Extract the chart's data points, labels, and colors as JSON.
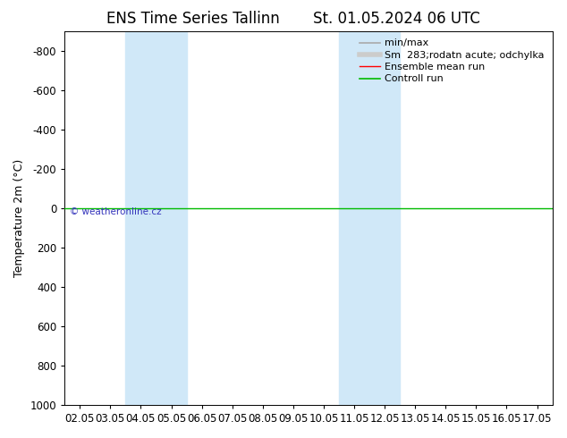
{
  "title": "ENS Time Series Tallinn",
  "title2": "St. 01.05.2024 06 UTC",
  "ylabel": "Temperature 2m (°C)",
  "xlim_dates": [
    "02.05",
    "03.05",
    "04.05",
    "05.05",
    "06.05",
    "07.05",
    "08.05",
    "09.05",
    "10.05",
    "11.05",
    "12.05",
    "13.05",
    "14.05",
    "15.05",
    "16.05",
    "17.05"
  ],
  "ylim_top": -900,
  "ylim_bottom": 1000,
  "yticks": [
    -800,
    -600,
    -400,
    -200,
    0,
    200,
    400,
    600,
    800,
    1000
  ],
  "x_ticks_positions": [
    0,
    1,
    2,
    3,
    4,
    5,
    6,
    7,
    8,
    9,
    10,
    11,
    12,
    13,
    14,
    15
  ],
  "shaded_regions": [
    {
      "xmin": 2,
      "xmax": 4,
      "color": "#d0e8f8"
    },
    {
      "xmin": 9,
      "xmax": 11,
      "color": "#d0e8f8"
    }
  ],
  "green_line_y": 0,
  "red_line_y": 0,
  "background_color": "#ffffff",
  "plot_bg_color": "#ffffff",
  "watermark": "© weatheronline.cz",
  "watermark_color": "#3333bb",
  "title_fontsize": 12,
  "tick_fontsize": 8.5,
  "axis_label_fontsize": 9,
  "legend_fontsize": 8
}
